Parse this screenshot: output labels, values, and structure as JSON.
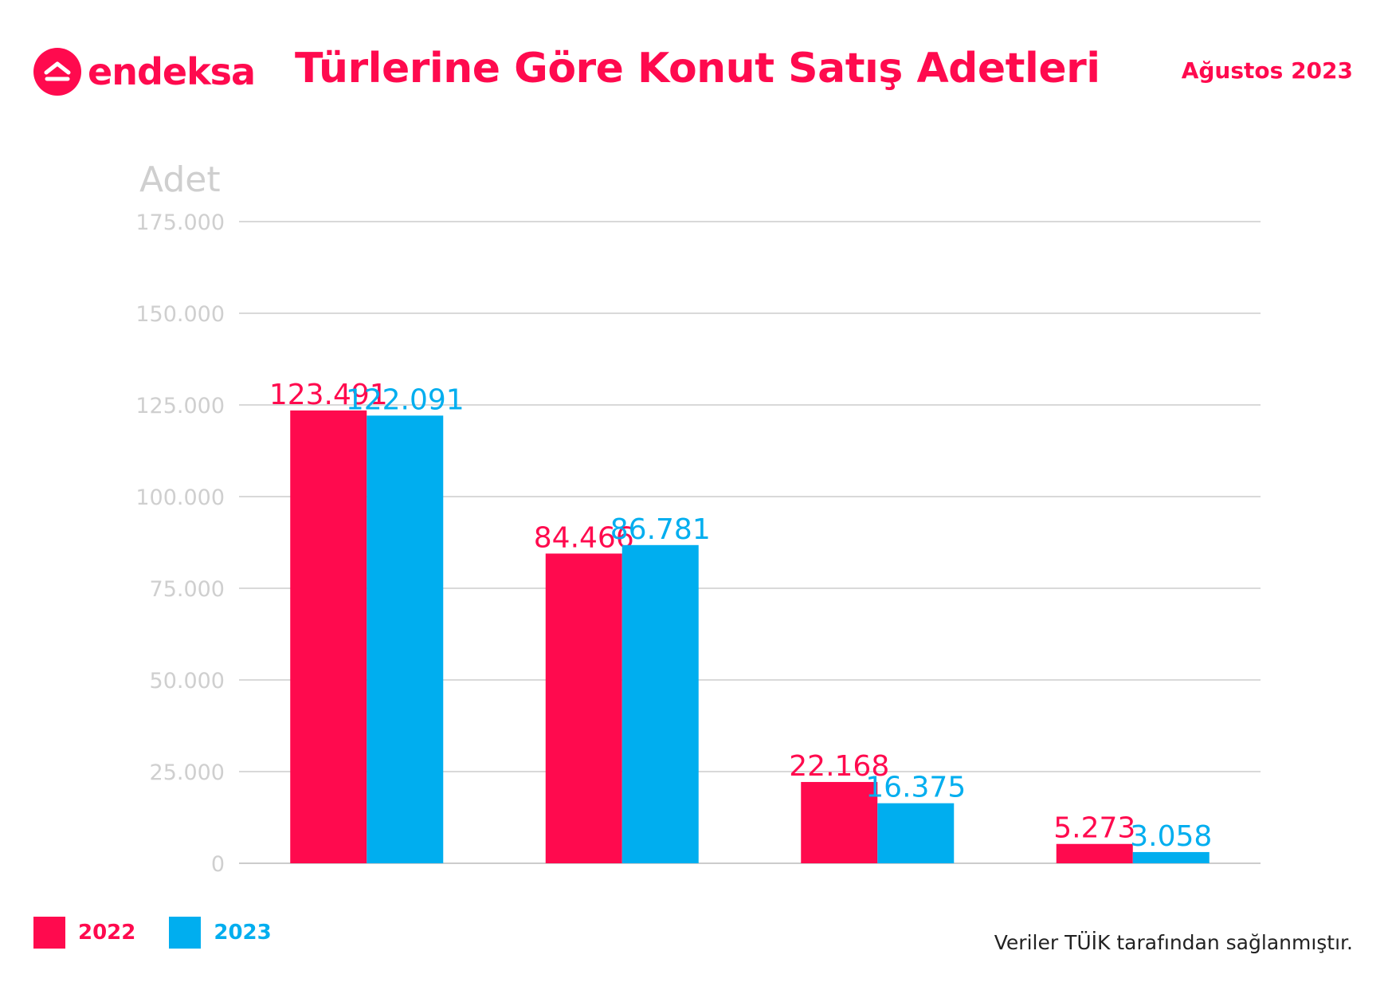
{
  "brand": {
    "name": "endeksa",
    "color": "#ff0a4e",
    "icon": "home-roof-icon"
  },
  "header": {
    "title": "Türlerine Göre Konut Satış Adetleri",
    "period": "Ağustos 2023"
  },
  "chart_data": {
    "type": "bar",
    "title": "Türlerine Göre Konut Satış Adetleri",
    "ylabel": "Adet",
    "xlabel": "",
    "ylim": [
      0,
      175000
    ],
    "yticks": [
      0,
      25000,
      50000,
      75000,
      100000,
      125000,
      150000,
      175000
    ],
    "ytick_labels": [
      "0",
      "25.000",
      "50.000",
      "75.000",
      "100.000",
      "125.000",
      "150.000",
      "175.000"
    ],
    "grid": true,
    "legend_position": "bottom-left",
    "categories": [
      "",
      "",
      "",
      ""
    ],
    "series": [
      {
        "name": "2022",
        "color": "#ff0a4e",
        "values": [
          123491,
          84466,
          22168,
          5273
        ],
        "labels": [
          "123.491",
          "84.466",
          "22.168",
          "5.273"
        ]
      },
      {
        "name": "2023",
        "color": "#00aeef",
        "values": [
          122091,
          86781,
          16375,
          3058
        ],
        "labels": [
          "122.091",
          "86.781",
          "16.375",
          "3.058"
        ]
      }
    ]
  },
  "legend": {
    "items": [
      {
        "label": "2022",
        "color": "#ff0a4e"
      },
      {
        "label": "2023",
        "color": "#00aeef"
      }
    ]
  },
  "footer": {
    "source": "Veriler TÜİK tarafından sağlanmıştır."
  }
}
